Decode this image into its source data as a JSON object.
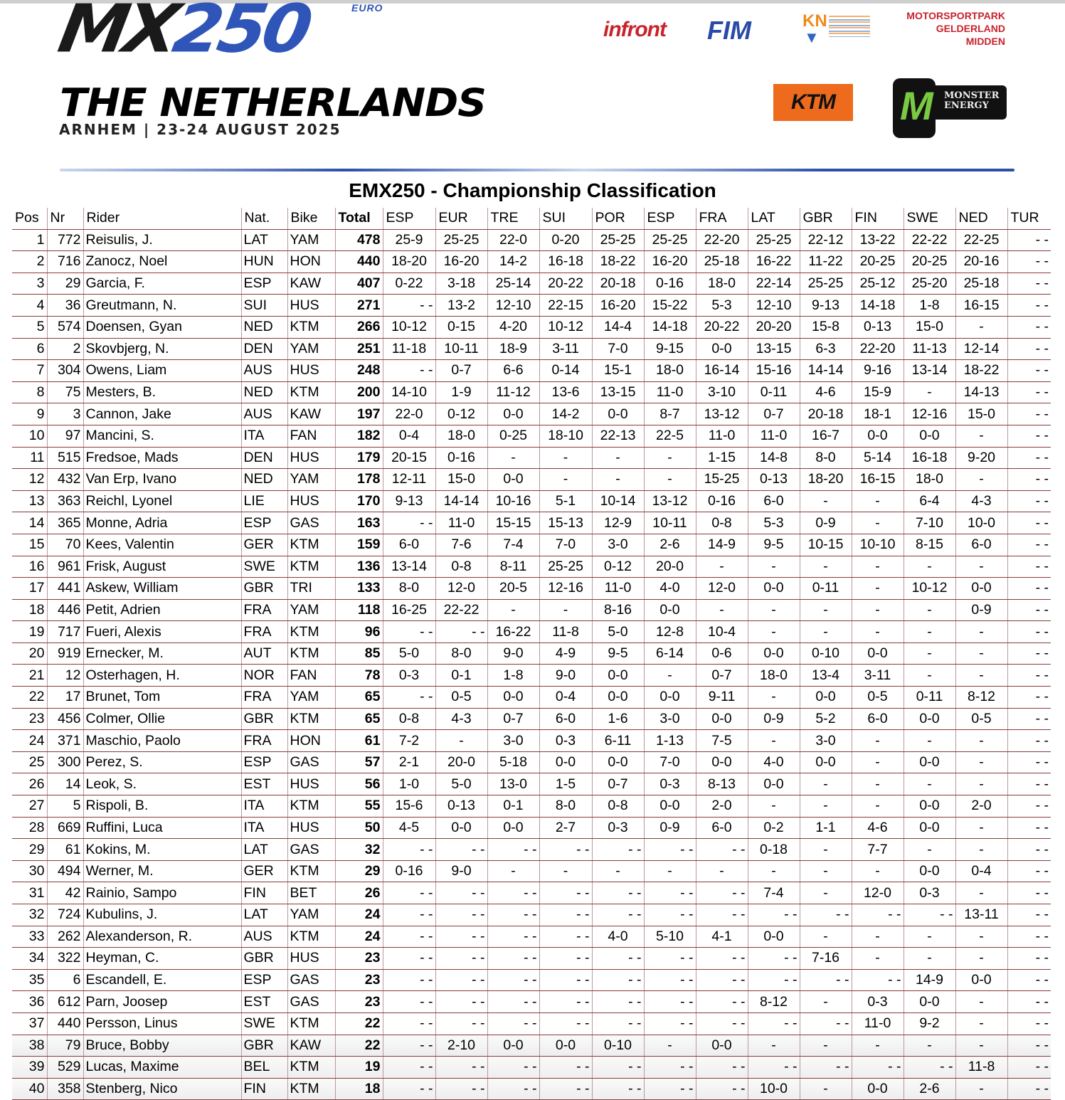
{
  "header": {
    "logo_mx": "MX",
    "logo_num": "250",
    "logo_euro": "EURO",
    "country": "THE NETHERLANDS",
    "venue": "ARNHEM | 23-24 AUGUST 2025",
    "sponsors": [
      "infront",
      "FIM",
      "KN",
      "MOTORSPORTPARK GELDERLAND MIDDEN",
      "KTM",
      "MONSTER ENERGY"
    ]
  },
  "title": "EMX250 - Championship Classification",
  "columns": [
    "Pos",
    "Nr",
    "Rider",
    "Nat.",
    "Bike",
    "Total",
    "ESP",
    "EUR",
    "TRE",
    "SUI",
    "POR",
    "ESP",
    "FRA",
    "LAT",
    "GBR",
    "FIN",
    "SWE",
    "NED",
    "TUR"
  ],
  "rows": [
    {
      "pos": "1",
      "nr": "772",
      "rider": "Reisulis, J.",
      "nat": "LAT",
      "bike": "YAM",
      "total": "478",
      "results": [
        "25-9",
        "25-25",
        "22-0",
        "0-20",
        "25-25",
        "25-25",
        "22-20",
        "25-25",
        "22-12",
        "13-22",
        "22-22",
        "22-25",
        "- -"
      ]
    },
    {
      "pos": "2",
      "nr": "716",
      "rider": "Zanocz, Noel",
      "nat": "HUN",
      "bike": "HON",
      "total": "440",
      "results": [
        "18-20",
        "16-20",
        "14-2",
        "16-18",
        "18-22",
        "16-20",
        "25-18",
        "16-22",
        "11-22",
        "20-25",
        "20-25",
        "20-16",
        "- -"
      ]
    },
    {
      "pos": "3",
      "nr": "29",
      "rider": "Garcia, F.",
      "nat": "ESP",
      "bike": "KAW",
      "total": "407",
      "results": [
        "0-22",
        "3-18",
        "25-14",
        "20-22",
        "20-18",
        "0-16",
        "18-0",
        "22-14",
        "25-25",
        "25-12",
        "25-20",
        "25-18",
        "- -"
      ]
    },
    {
      "pos": "4",
      "nr": "36",
      "rider": "Greutmann, N.",
      "nat": "SUI",
      "bike": "HUS",
      "total": "271",
      "results": [
        "- -",
        "13-2",
        "12-10",
        "22-15",
        "16-20",
        "15-22",
        "5-3",
        "12-10",
        "9-13",
        "14-18",
        "1-8",
        "16-15",
        "- -"
      ]
    },
    {
      "pos": "5",
      "nr": "574",
      "rider": "Doensen, Gyan",
      "nat": "NED",
      "bike": "KTM",
      "total": "266",
      "results": [
        "10-12",
        "0-15",
        "4-20",
        "10-12",
        "14-4",
        "14-18",
        "20-22",
        "20-20",
        "15-8",
        "0-13",
        "15-0",
        "-",
        "- -"
      ]
    },
    {
      "pos": "6",
      "nr": "2",
      "rider": "Skovbjerg, N.",
      "nat": "DEN",
      "bike": "YAM",
      "total": "251",
      "results": [
        "11-18",
        "10-11",
        "18-9",
        "3-11",
        "7-0",
        "9-15",
        "0-0",
        "13-15",
        "6-3",
        "22-20",
        "11-13",
        "12-14",
        "- -"
      ]
    },
    {
      "pos": "7",
      "nr": "304",
      "rider": "Owens, Liam",
      "nat": "AUS",
      "bike": "HUS",
      "total": "248",
      "results": [
        "- -",
        "0-7",
        "6-6",
        "0-14",
        "15-1",
        "18-0",
        "16-14",
        "15-16",
        "14-14",
        "9-16",
        "13-14",
        "18-22",
        "- -"
      ]
    },
    {
      "pos": "8",
      "nr": "75",
      "rider": "Mesters, B.",
      "nat": "NED",
      "bike": "KTM",
      "total": "200",
      "results": [
        "14-10",
        "1-9",
        "11-12",
        "13-6",
        "13-15",
        "11-0",
        "3-10",
        "0-11",
        "4-6",
        "15-9",
        "-",
        "14-13",
        "- -"
      ]
    },
    {
      "pos": "9",
      "nr": "3",
      "rider": "Cannon, Jake",
      "nat": "AUS",
      "bike": "KAW",
      "total": "197",
      "results": [
        "22-0",
        "0-12",
        "0-0",
        "14-2",
        "0-0",
        "8-7",
        "13-12",
        "0-7",
        "20-18",
        "18-1",
        "12-16",
        "15-0",
        "- -"
      ]
    },
    {
      "pos": "10",
      "nr": "97",
      "rider": "Mancini, S.",
      "nat": "ITA",
      "bike": "FAN",
      "total": "182",
      "results": [
        "0-4",
        "18-0",
        "0-25",
        "18-10",
        "22-13",
        "22-5",
        "11-0",
        "11-0",
        "16-7",
        "0-0",
        "0-0",
        "-",
        "- -"
      ]
    },
    {
      "pos": "11",
      "nr": "515",
      "rider": "Fredsoe, Mads",
      "nat": "DEN",
      "bike": "HUS",
      "total": "179",
      "results": [
        "20-15",
        "0-16",
        "-",
        "-",
        "-",
        "-",
        "1-15",
        "14-8",
        "8-0",
        "5-14",
        "16-18",
        "9-20",
        "- -"
      ]
    },
    {
      "pos": "12",
      "nr": "432",
      "rider": "Van Erp, Ivano",
      "nat": "NED",
      "bike": "YAM",
      "total": "178",
      "results": [
        "12-11",
        "15-0",
        "0-0",
        "-",
        "-",
        "-",
        "15-25",
        "0-13",
        "18-20",
        "16-15",
        "18-0",
        "-",
        "- -"
      ]
    },
    {
      "pos": "13",
      "nr": "363",
      "rider": "Reichl, Lyonel",
      "nat": "LIE",
      "bike": "HUS",
      "total": "170",
      "results": [
        "9-13",
        "14-14",
        "10-16",
        "5-1",
        "10-14",
        "13-12",
        "0-16",
        "6-0",
        "-",
        "-",
        "6-4",
        "4-3",
        "- -"
      ]
    },
    {
      "pos": "14",
      "nr": "365",
      "rider": "Monne, Adria",
      "nat": "ESP",
      "bike": "GAS",
      "total": "163",
      "results": [
        "- -",
        "11-0",
        "15-15",
        "15-13",
        "12-9",
        "10-11",
        "0-8",
        "5-3",
        "0-9",
        "-",
        "7-10",
        "10-0",
        "- -"
      ]
    },
    {
      "pos": "15",
      "nr": "70",
      "rider": "Kees, Valentin",
      "nat": "GER",
      "bike": "KTM",
      "total": "159",
      "results": [
        "6-0",
        "7-6",
        "7-4",
        "7-0",
        "3-0",
        "2-6",
        "14-9",
        "9-5",
        "10-15",
        "10-10",
        "8-15",
        "6-0",
        "- -"
      ]
    },
    {
      "pos": "16",
      "nr": "961",
      "rider": "Frisk, August",
      "nat": "SWE",
      "bike": "KTM",
      "total": "136",
      "results": [
        "13-14",
        "0-8",
        "8-11",
        "25-25",
        "0-12",
        "20-0",
        "-",
        "-",
        "-",
        "-",
        "-",
        "-",
        "- -"
      ]
    },
    {
      "pos": "17",
      "nr": "441",
      "rider": "Askew, William",
      "nat": "GBR",
      "bike": "TRI",
      "total": "133",
      "results": [
        "8-0",
        "12-0",
        "20-5",
        "12-16",
        "11-0",
        "4-0",
        "12-0",
        "0-0",
        "0-11",
        "-",
        "10-12",
        "0-0",
        "- -"
      ]
    },
    {
      "pos": "18",
      "nr": "446",
      "rider": "Petit, Adrien",
      "nat": "FRA",
      "bike": "YAM",
      "total": "118",
      "results": [
        "16-25",
        "22-22",
        "-",
        "-",
        "8-16",
        "0-0",
        "-",
        "-",
        "-",
        "-",
        "-",
        "0-9",
        "- -"
      ]
    },
    {
      "pos": "19",
      "nr": "717",
      "rider": "Fueri, Alexis",
      "nat": "FRA",
      "bike": "KTM",
      "total": "96",
      "results": [
        "- -",
        "- -",
        "16-22",
        "11-8",
        "5-0",
        "12-8",
        "10-4",
        "-",
        "-",
        "-",
        "-",
        "-",
        "- -"
      ]
    },
    {
      "pos": "20",
      "nr": "919",
      "rider": "Ernecker, M.",
      "nat": "AUT",
      "bike": "KTM",
      "total": "85",
      "results": [
        "5-0",
        "8-0",
        "9-0",
        "4-9",
        "9-5",
        "6-14",
        "0-6",
        "0-0",
        "0-10",
        "0-0",
        "-",
        "-",
        "- -"
      ]
    },
    {
      "pos": "21",
      "nr": "12",
      "rider": "Osterhagen, H.",
      "nat": "NOR",
      "bike": "FAN",
      "total": "78",
      "results": [
        "0-3",
        "0-1",
        "1-8",
        "9-0",
        "0-0",
        "-",
        "0-7",
        "18-0",
        "13-4",
        "3-11",
        "-",
        "-",
        "- -"
      ]
    },
    {
      "pos": "22",
      "nr": "17",
      "rider": "Brunet, Tom",
      "nat": "FRA",
      "bike": "YAM",
      "total": "65",
      "results": [
        "- -",
        "0-5",
        "0-0",
        "0-4",
        "0-0",
        "0-0",
        "9-11",
        "-",
        "0-0",
        "0-5",
        "0-11",
        "8-12",
        "- -"
      ]
    },
    {
      "pos": "23",
      "nr": "456",
      "rider": "Colmer, Ollie",
      "nat": "GBR",
      "bike": "KTM",
      "total": "65",
      "results": [
        "0-8",
        "4-3",
        "0-7",
        "6-0",
        "1-6",
        "3-0",
        "0-0",
        "0-9",
        "5-2",
        "6-0",
        "0-0",
        "0-5",
        "- -"
      ]
    },
    {
      "pos": "24",
      "nr": "371",
      "rider": "Maschio, Paolo",
      "nat": "FRA",
      "bike": "HON",
      "total": "61",
      "results": [
        "7-2",
        "-",
        "3-0",
        "0-3",
        "6-11",
        "1-13",
        "7-5",
        "-",
        "3-0",
        "-",
        "-",
        "-",
        "- -"
      ]
    },
    {
      "pos": "25",
      "nr": "300",
      "rider": "Perez, S.",
      "nat": "ESP",
      "bike": "GAS",
      "total": "57",
      "results": [
        "2-1",
        "20-0",
        "5-18",
        "0-0",
        "0-0",
        "7-0",
        "0-0",
        "4-0",
        "0-0",
        "-",
        "0-0",
        "-",
        "- -"
      ]
    },
    {
      "pos": "26",
      "nr": "14",
      "rider": "Leok, S.",
      "nat": "EST",
      "bike": "HUS",
      "total": "56",
      "results": [
        "1-0",
        "5-0",
        "13-0",
        "1-5",
        "0-7",
        "0-3",
        "8-13",
        "0-0",
        "-",
        "-",
        "-",
        "-",
        "- -"
      ]
    },
    {
      "pos": "27",
      "nr": "5",
      "rider": "Rispoli, B.",
      "nat": "ITA",
      "bike": "KTM",
      "total": "55",
      "results": [
        "15-6",
        "0-13",
        "0-1",
        "8-0",
        "0-8",
        "0-0",
        "2-0",
        "-",
        "-",
        "-",
        "0-0",
        "2-0",
        "- -"
      ]
    },
    {
      "pos": "28",
      "nr": "669",
      "rider": "Ruffini, Luca",
      "nat": "ITA",
      "bike": "HUS",
      "total": "50",
      "results": [
        "4-5",
        "0-0",
        "0-0",
        "2-7",
        "0-3",
        "0-9",
        "6-0",
        "0-2",
        "1-1",
        "4-6",
        "0-0",
        "-",
        "- -"
      ]
    },
    {
      "pos": "29",
      "nr": "61",
      "rider": "Kokins, M.",
      "nat": "LAT",
      "bike": "GAS",
      "total": "32",
      "results": [
        "- -",
        "- -",
        "- -",
        "- -",
        "- -",
        "- -",
        "- -",
        "0-18",
        "-",
        "7-7",
        "-",
        "-",
        "- -"
      ]
    },
    {
      "pos": "30",
      "nr": "494",
      "rider": "Werner, M.",
      "nat": "GER",
      "bike": "KTM",
      "total": "29",
      "results": [
        "0-16",
        "9-0",
        "-",
        "-",
        "-",
        "-",
        "-",
        "-",
        "-",
        "-",
        "0-0",
        "0-4",
        "- -"
      ]
    },
    {
      "pos": "31",
      "nr": "42",
      "rider": "Rainio, Sampo",
      "nat": "FIN",
      "bike": "BET",
      "total": "26",
      "results": [
        "- -",
        "- -",
        "- -",
        "- -",
        "- -",
        "- -",
        "- -",
        "7-4",
        "-",
        "12-0",
        "0-3",
        "-",
        "- -"
      ]
    },
    {
      "pos": "32",
      "nr": "724",
      "rider": "Kubulins, J.",
      "nat": "LAT",
      "bike": "YAM",
      "total": "24",
      "results": [
        "- -",
        "- -",
        "- -",
        "- -",
        "- -",
        "- -",
        "- -",
        "- -",
        "- -",
        "- -",
        "- -",
        "13-11",
        "- -"
      ]
    },
    {
      "pos": "33",
      "nr": "262",
      "rider": "Alexanderson, R.",
      "nat": "AUS",
      "bike": "KTM",
      "total": "24",
      "results": [
        "- -",
        "- -",
        "- -",
        "- -",
        "4-0",
        "5-10",
        "4-1",
        "0-0",
        "-",
        "-",
        "-",
        "-",
        "- -"
      ]
    },
    {
      "pos": "34",
      "nr": "322",
      "rider": "Heyman, C.",
      "nat": "GBR",
      "bike": "HUS",
      "total": "23",
      "results": [
        "- -",
        "- -",
        "- -",
        "- -",
        "- -",
        "- -",
        "- -",
        "- -",
        "7-16",
        "-",
        "-",
        "-",
        "- -"
      ]
    },
    {
      "pos": "35",
      "nr": "6",
      "rider": "Escandell, E.",
      "nat": "ESP",
      "bike": "GAS",
      "total": "23",
      "results": [
        "- -",
        "- -",
        "- -",
        "- -",
        "- -",
        "- -",
        "- -",
        "- -",
        "- -",
        "- -",
        "14-9",
        "0-0",
        "- -"
      ]
    },
    {
      "pos": "36",
      "nr": "612",
      "rider": "Parn, Joosep",
      "nat": "EST",
      "bike": "GAS",
      "total": "23",
      "results": [
        "- -",
        "- -",
        "- -",
        "- -",
        "- -",
        "- -",
        "- -",
        "8-12",
        "-",
        "0-3",
        "0-0",
        "-",
        "- -"
      ]
    },
    {
      "pos": "37",
      "nr": "440",
      "rider": "Persson, Linus",
      "nat": "SWE",
      "bike": "KTM",
      "total": "22",
      "results": [
        "- -",
        "- -",
        "- -",
        "- -",
        "- -",
        "- -",
        "- -",
        "- -",
        "- -",
        "11-0",
        "9-2",
        "-",
        "- -"
      ]
    },
    {
      "pos": "38",
      "nr": "79",
      "rider": "Bruce, Bobby",
      "nat": "GBR",
      "bike": "KAW",
      "total": "22",
      "results": [
        "- -",
        "2-10",
        "0-0",
        "0-0",
        "0-10",
        "-",
        "0-0",
        "-",
        "-",
        "-",
        "-",
        "-",
        "- -"
      ]
    },
    {
      "pos": "39",
      "nr": "529",
      "rider": "Lucas, Maxime",
      "nat": "BEL",
      "bike": "KTM",
      "total": "19",
      "results": [
        "- -",
        "- -",
        "- -",
        "- -",
        "- -",
        "- -",
        "- -",
        "- -",
        "- -",
        "- -",
        "- -",
        "11-8",
        "- -"
      ]
    },
    {
      "pos": "40",
      "nr": "358",
      "rider": "Stenberg, Nico",
      "nat": "FIN",
      "bike": "KTM",
      "total": "18",
      "results": [
        "- -",
        "- -",
        "- -",
        "- -",
        "- -",
        "- -",
        "- -",
        "10-0",
        "-",
        "0-0",
        "2-6",
        "-",
        "- -"
      ]
    }
  ]
}
